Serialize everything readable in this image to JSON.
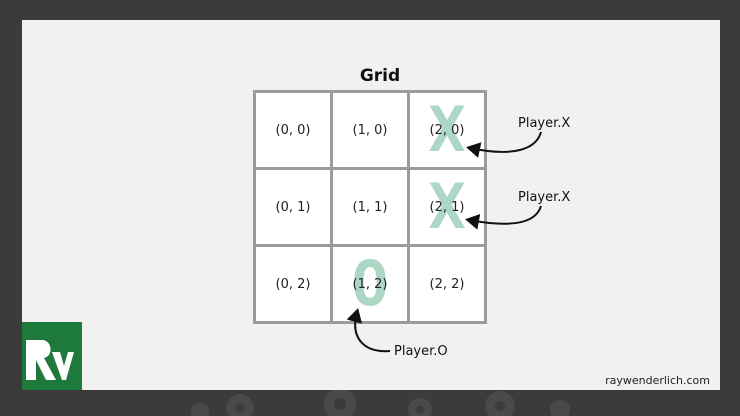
{
  "grid": {
    "title": "Grid",
    "cells": [
      {
        "row": 0,
        "col": 0,
        "label": "(0, 0)",
        "mark": ""
      },
      {
        "row": 0,
        "col": 1,
        "label": "(1, 0)",
        "mark": ""
      },
      {
        "row": 0,
        "col": 2,
        "label": "(2, 0)",
        "mark": "X"
      },
      {
        "row": 1,
        "col": 0,
        "label": "(0, 1)",
        "mark": ""
      },
      {
        "row": 1,
        "col": 1,
        "label": "(1, 1)",
        "mark": ""
      },
      {
        "row": 1,
        "col": 2,
        "label": "(2, 1)",
        "mark": "X"
      },
      {
        "row": 2,
        "col": 0,
        "label": "(0, 2)",
        "mark": ""
      },
      {
        "row": 2,
        "col": 1,
        "label": "(1, 2)",
        "mark": "O"
      },
      {
        "row": 2,
        "col": 2,
        "label": "(2, 2)",
        "mark": ""
      }
    ]
  },
  "annotations": {
    "player_x_top": "Player.X",
    "player_x_mid": "Player.X",
    "player_o": "Player.O"
  },
  "footer": {
    "credit": "raywenderlich.com"
  },
  "colors": {
    "background": "#3b3b3b",
    "slide": "#f1f1f1",
    "grid_line": "#9b9b9b",
    "mark": "#78bea0",
    "brand": "#1e7a3c"
  }
}
